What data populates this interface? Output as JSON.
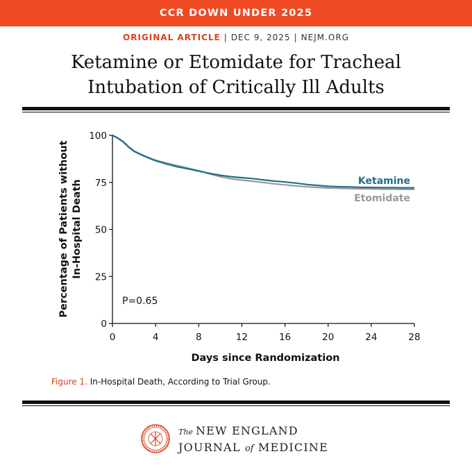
{
  "banner": {
    "text": "CCR DOWN UNDER 2025"
  },
  "meta": {
    "label": "ORIGINAL ARTICLE",
    "date": "DEC 9, 2025",
    "site": "NEJM.ORG"
  },
  "title": {
    "line1": "Ketamine or Etomidate for Tracheal",
    "line2": "Intubation of Critically Ill Adults"
  },
  "caption": {
    "figure": "Figure 1.",
    "text": "In-Hospital Death, According to Trial Group."
  },
  "journal": {
    "the": "The",
    "line1": "NEW ENGLAND",
    "line2a": "JOURNAL",
    "of": "of",
    "line2b": "MEDICINE"
  },
  "colors": {
    "banner": "#f04a24",
    "accent": "#d9411e",
    "ketamine": "#1f6f8b",
    "etomidate": "#9a9a9a"
  },
  "chart_data": {
    "type": "line",
    "title": "",
    "xlabel": "Days since Randomization",
    "ylabel": [
      "Percentage of Patients without",
      "In-Hospital Death"
    ],
    "xlim": [
      0,
      28
    ],
    "ylim": [
      0,
      100
    ],
    "xticks": [
      0,
      4,
      8,
      12,
      16,
      20,
      24,
      28
    ],
    "yticks": [
      0,
      25,
      50,
      75,
      100
    ],
    "grid": false,
    "legend": "inline-right",
    "annotation": "P=0.65",
    "series": [
      {
        "name": "Ketamine",
        "color": "#1f6f8b",
        "x": [
          0,
          0.5,
          1,
          1.5,
          2,
          3,
          4,
          5,
          6,
          7,
          8,
          9,
          10,
          11,
          12,
          13,
          14,
          15,
          16,
          17,
          18,
          19,
          20,
          21,
          22,
          23,
          24,
          25,
          26,
          27,
          28
        ],
        "y": [
          100,
          98.5,
          96.5,
          93.8,
          91.5,
          88.8,
          86.5,
          84.8,
          83.3,
          82.2,
          81.0,
          79.8,
          78.8,
          78.0,
          77.5,
          77.0,
          76.3,
          75.7,
          75.2,
          74.6,
          73.9,
          73.4,
          72.9,
          72.7,
          72.6,
          72.4,
          72.3,
          72.2,
          72.2,
          72.1,
          72.1
        ]
      },
      {
        "name": "Etomidate",
        "color": "#9a9a9a",
        "x": [
          0,
          0.5,
          1,
          1.5,
          2,
          3,
          4,
          5,
          6,
          7,
          8,
          9,
          10,
          11,
          12,
          13,
          14,
          15,
          16,
          17,
          18,
          19,
          20,
          21,
          22,
          23,
          24,
          25,
          26,
          27,
          28
        ],
        "y": [
          100,
          98.6,
          96.8,
          94.0,
          91.7,
          89.0,
          86.8,
          85.3,
          84.0,
          82.6,
          81.2,
          79.5,
          78.0,
          76.9,
          76.2,
          75.6,
          74.9,
          74.2,
          73.7,
          73.1,
          72.7,
          72.3,
          72.0,
          71.8,
          71.7,
          71.6,
          71.5,
          71.4,
          71.4,
          71.3,
          71.3
        ]
      }
    ]
  }
}
